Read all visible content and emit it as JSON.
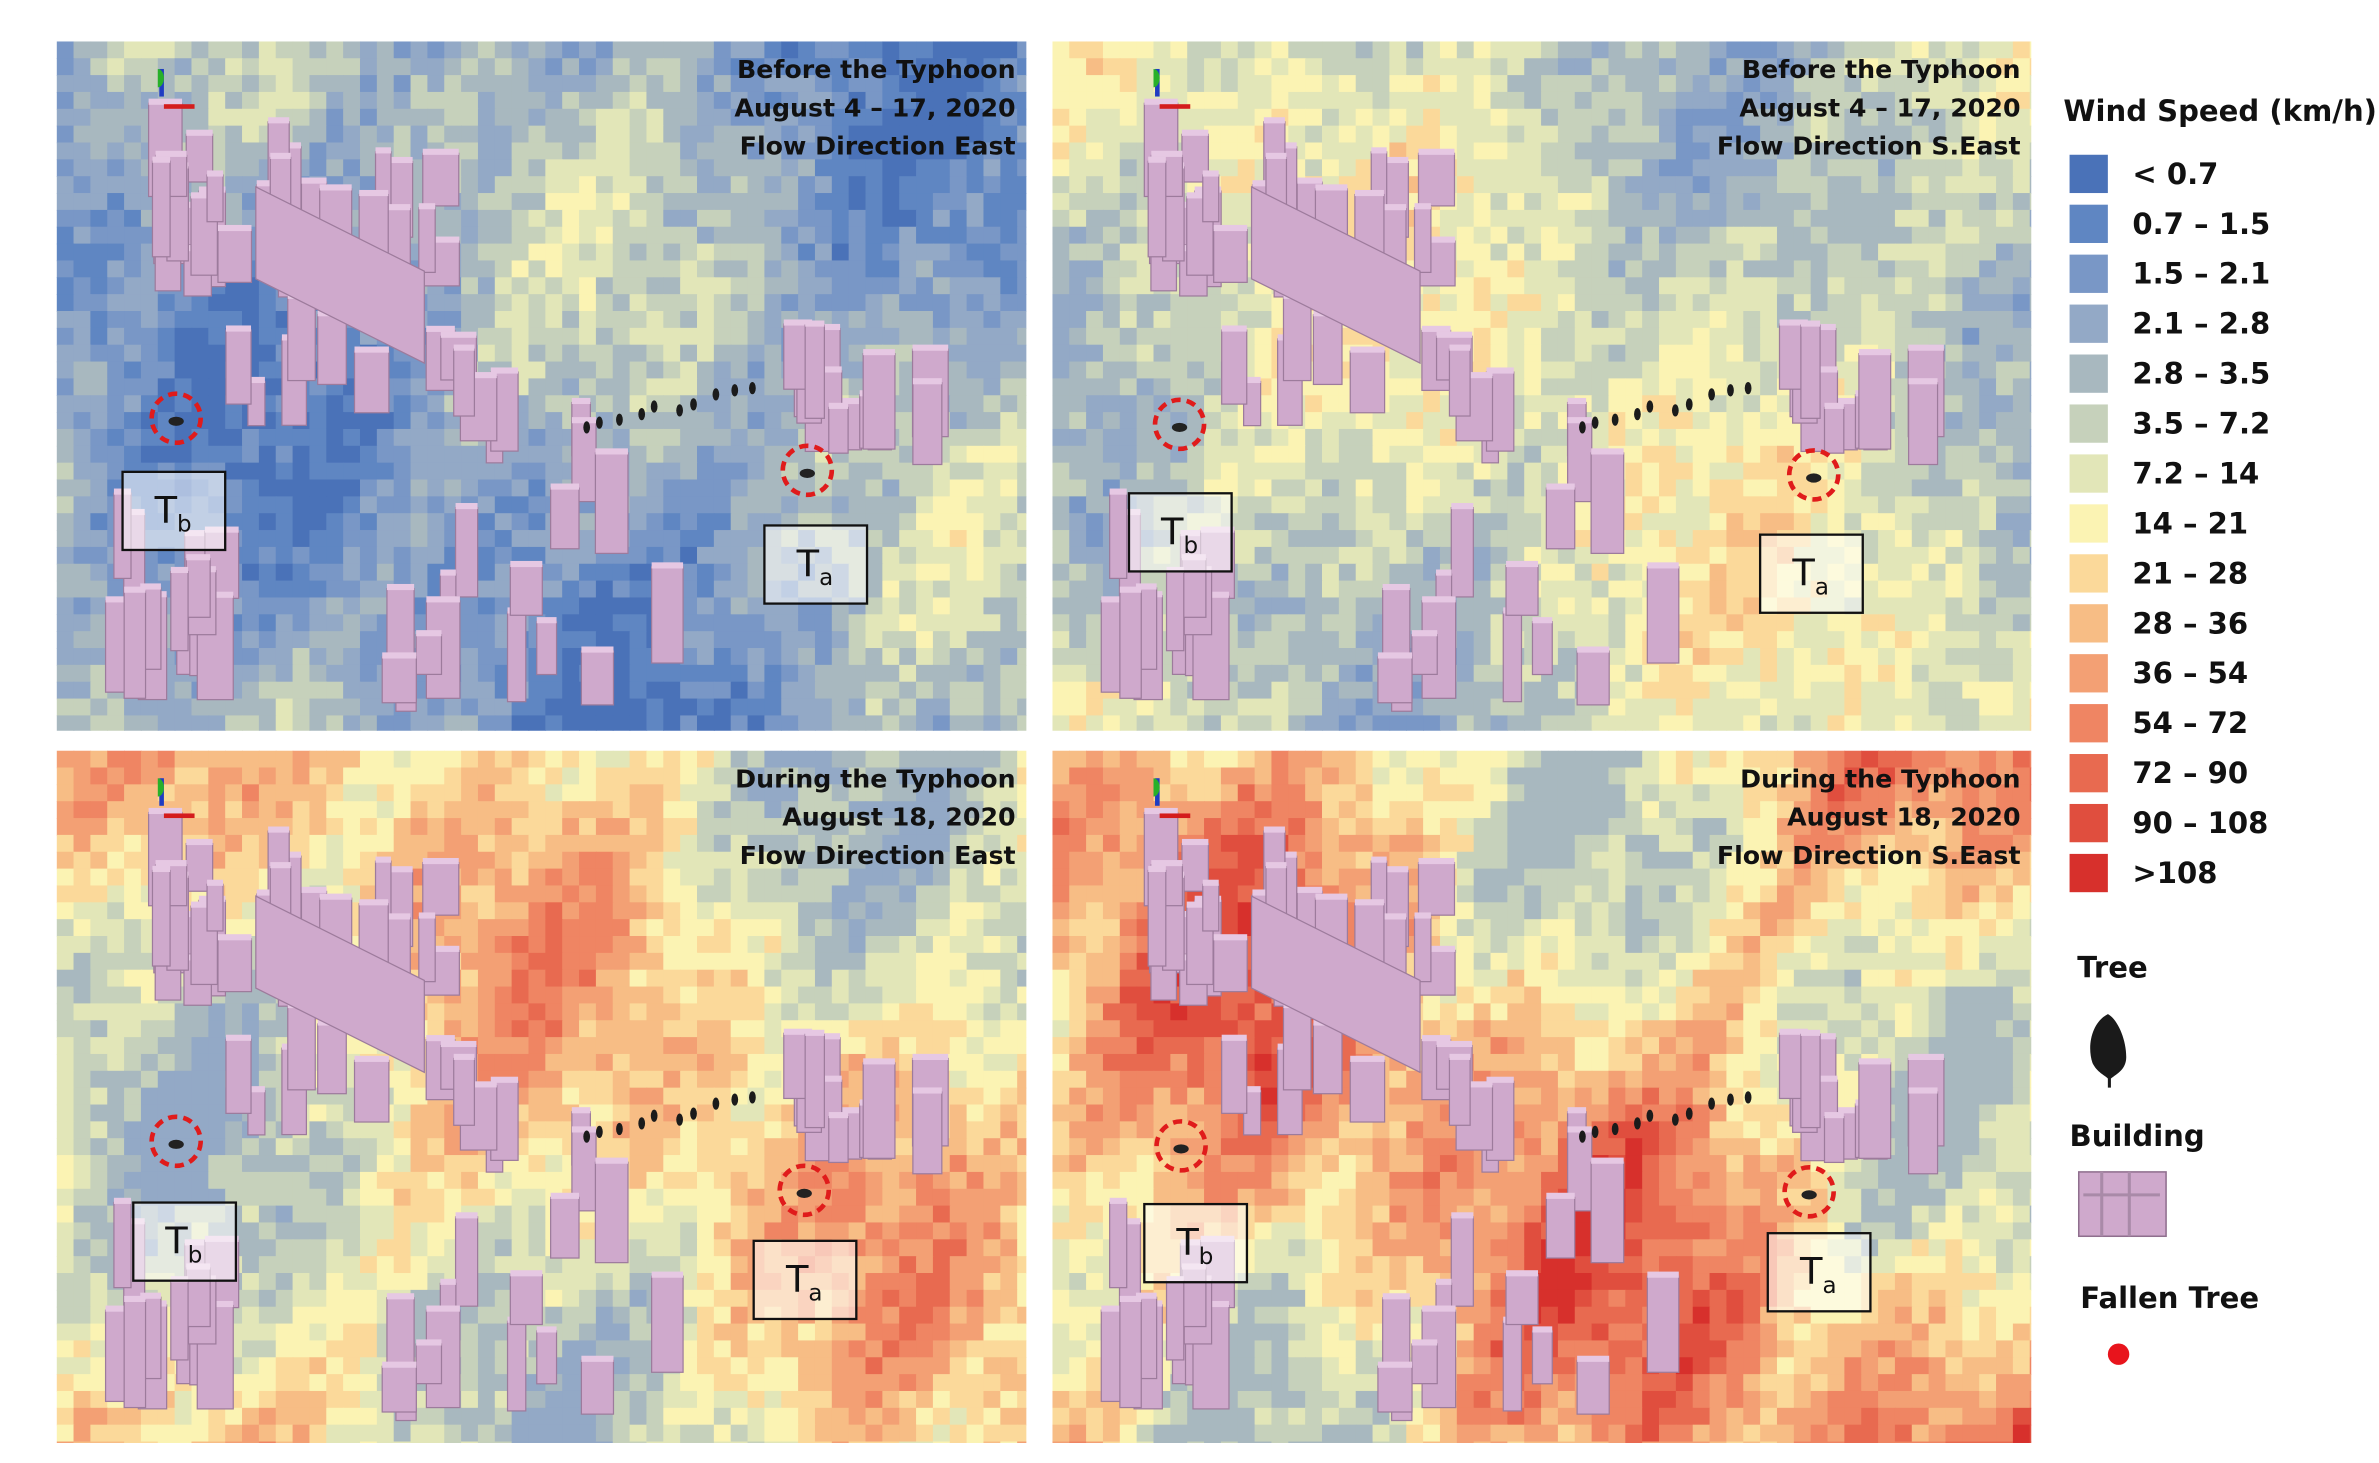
{
  "panels": [
    {
      "lines": [
        "Before the Typhoon",
        "August 4 – 17, 2020",
        "Flow Direction East"
      ],
      "labels": [
        {
          "text": "T",
          "sub": "b"
        },
        {
          "text": "T",
          "sub": "a"
        }
      ]
    },
    {
      "lines": [
        "Before the Typhoon",
        "August 4 – 17, 2020",
        "Flow Direction S.East"
      ],
      "labels": [
        {
          "text": "T",
          "sub": "b"
        },
        {
          "text": "T",
          "sub": "a"
        }
      ]
    },
    {
      "lines": [
        "During the Typhoon",
        "August 18, 2020",
        "Flow Direction East"
      ],
      "labels": [
        {
          "text": "T",
          "sub": "b"
        },
        {
          "text": "T",
          "sub": "a"
        }
      ]
    },
    {
      "lines": [
        "During the Typhoon",
        "August 18, 2020",
        "Flow Direction S.East"
      ],
      "labels": [
        {
          "text": "T",
          "sub": "b"
        },
        {
          "text": "T",
          "sub": "a"
        }
      ]
    }
  ],
  "legend": {
    "title": "Wind Speed (km/h)",
    "classes": [
      {
        "label": "< 0.7",
        "color": "#4a72b8"
      },
      {
        "label": "0.7 – 1.5",
        "color": "#5f86c2"
      },
      {
        "label": "1.5 – 2.1",
        "color": "#7997c6"
      },
      {
        "label": "2.1 – 2.8",
        "color": "#93a9c6"
      },
      {
        "label": "2.8 – 3.5",
        "color": "#a8b8bf"
      },
      {
        "label": "3.5 – 7.2",
        "color": "#c6d1bb"
      },
      {
        "label": "7.2 – 14",
        "color": "#e2e6b8"
      },
      {
        "label": "14 – 21",
        "color": "#fbf3b3"
      },
      {
        "label": "21 – 28",
        "color": "#fbd99a"
      },
      {
        "label": "28 – 36",
        "color": "#f7bd85"
      },
      {
        "label": "36 – 54",
        "color": "#f3a074"
      },
      {
        "label": "54 – 72",
        "color": "#ef8563"
      },
      {
        "label": "72 – 90",
        "color": "#e86a50"
      },
      {
        "label": "90 – 108",
        "color": "#e04e3e"
      },
      {
        "label": ">108",
        "color": "#d7302c"
      }
    ],
    "tree": "Tree",
    "building": "Building",
    "fallen_tree": "Fallen Tree",
    "fallen_color": "#e8141c"
  }
}
